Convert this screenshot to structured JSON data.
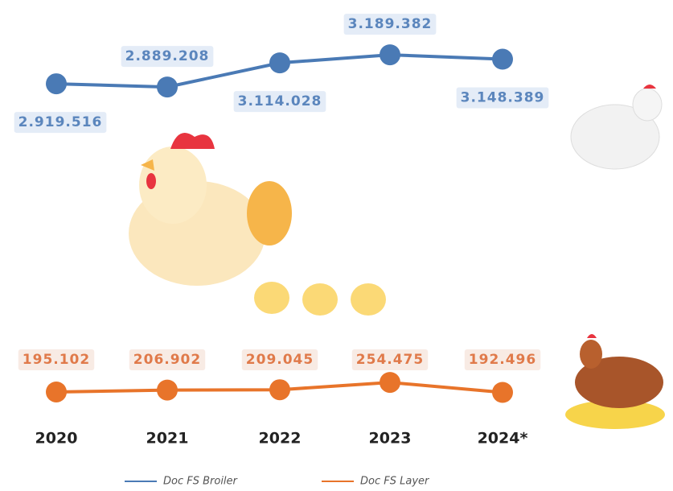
{
  "chart_data": {
    "type": "line",
    "categories": [
      "2020",
      "2021",
      "2022",
      "2023",
      "2024*"
    ],
    "ylim": [
      2500000,
      3400000
    ],
    "y2lim": [
      130000,
      430000
    ],
    "series": [
      {
        "name": "Doc FS Broiler",
        "color": "#4a7ab5",
        "values": [
          2919516,
          2889208,
          3114028,
          3189382,
          3148389
        ],
        "value_labels": [
          "2.919.516",
          "2.889.208",
          "3.114.028",
          "3.189.382",
          "3.148.389"
        ]
      },
      {
        "name": "Doc FS Layer",
        "color": "#e8742a",
        "axis": "y2",
        "values": [
          195102,
          206902,
          209045,
          254475,
          192496
        ],
        "value_labels": [
          "195.102",
          "206.902",
          "209.045",
          "254.475",
          "192.496"
        ]
      }
    ]
  }
}
